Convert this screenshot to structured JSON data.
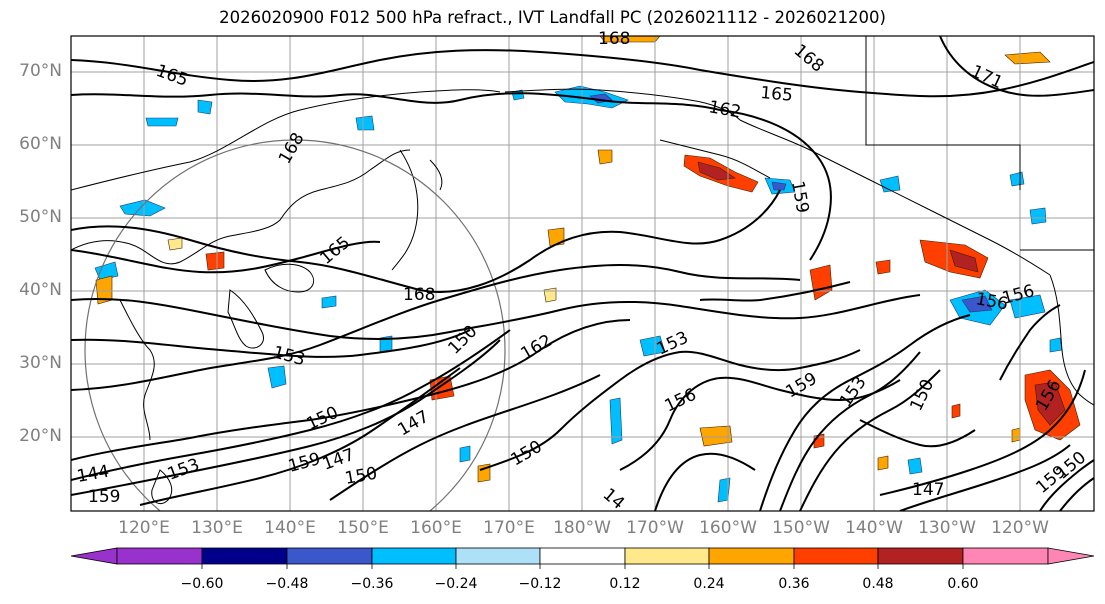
{
  "title": "2026020900 F012 500 hPa refract., IVT Landfall PC (2026021112 - 2026021200)",
  "lat_labels": [
    "70°N",
    "60°N",
    "50°N",
    "40°N",
    "30°N",
    "20°N"
  ],
  "lon_labels": [
    "120°E",
    "130°E",
    "140°E",
    "150°E",
    "160°E",
    "170°E",
    "180°W",
    "170°W",
    "160°W",
    "150°W",
    "140°W",
    "130°W",
    "120°W"
  ],
  "contour_labels": [
    "165",
    "168",
    "165",
    "162",
    "171",
    "168",
    "168",
    "165",
    "168",
    "159",
    "153",
    "150",
    "162",
    "153",
    "159",
    "156",
    "153",
    "150",
    "156",
    "156",
    "150",
    "147",
    "159",
    "147",
    "150",
    "150",
    "144",
    "159",
    "159",
    "156",
    "147",
    "150",
    "153",
    "14"
  ],
  "colorbar": {
    "ticks": [
      "−0.60",
      "−0.48",
      "−0.36",
      "−0.24",
      "−0.12",
      "0.12",
      "0.24",
      "0.36",
      "0.48",
      "0.60"
    ],
    "colors": [
      "#9932cc",
      "#00008b",
      "#3a57cc",
      "#00bfff",
      "#aee0f8",
      "#ffffff",
      "#ffe98a",
      "#ffa500",
      "#ff3f00",
      "#b22222",
      "#ff85b5"
    ]
  }
}
